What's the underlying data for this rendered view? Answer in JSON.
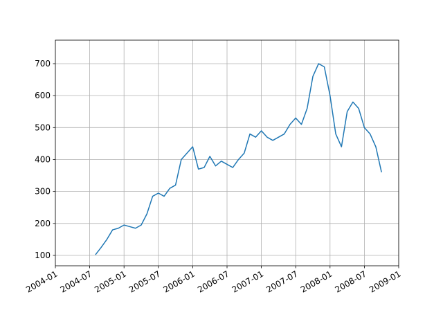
{
  "chart_data": {
    "type": "line",
    "x": [
      "2004-08",
      "2004-09",
      "2004-10",
      "2004-11",
      "2004-12",
      "2005-01",
      "2005-02",
      "2005-03",
      "2005-04",
      "2005-05",
      "2005-06",
      "2005-07",
      "2005-08",
      "2005-09",
      "2005-10",
      "2005-11",
      "2005-12",
      "2006-01",
      "2006-02",
      "2006-03",
      "2006-04",
      "2006-05",
      "2006-06",
      "2006-07",
      "2006-08",
      "2006-09",
      "2006-10",
      "2006-11",
      "2006-12",
      "2007-01",
      "2007-02",
      "2007-03",
      "2007-04",
      "2007-05",
      "2007-06",
      "2007-07",
      "2007-08",
      "2007-09",
      "2007-10",
      "2007-11",
      "2007-12",
      "2008-01",
      "2008-02",
      "2008-03",
      "2008-04",
      "2008-05",
      "2008-06",
      "2008-07",
      "2008-08",
      "2008-09",
      "2008-10"
    ],
    "series": [
      {
        "color": "#1f77b4",
        "values": [
          102,
          125,
          150,
          180,
          185,
          195,
          190,
          185,
          195,
          230,
          285,
          295,
          285,
          310,
          320,
          400,
          420,
          440,
          370,
          375,
          410,
          380,
          395,
          385,
          375,
          400,
          420,
          480,
          470,
          490,
          470,
          460,
          470,
          480,
          510,
          530,
          510,
          560,
          660,
          700,
          690,
          600,
          480,
          440,
          550,
          580,
          560,
          500,
          480,
          440,
          360
        ]
      }
    ],
    "xlim": [
      "2004-01",
      "2009-01"
    ],
    "xticks": [
      "2004-01",
      "2004-07",
      "2005-01",
      "2005-07",
      "2006-01",
      "2006-07",
      "2007-01",
      "2007-07",
      "2008-01",
      "2008-07",
      "2009-01"
    ],
    "ylim": [
      67.5,
      773.6
    ],
    "yticks": [
      100,
      200,
      300,
      400,
      500,
      600,
      700
    ],
    "grid": true
  }
}
